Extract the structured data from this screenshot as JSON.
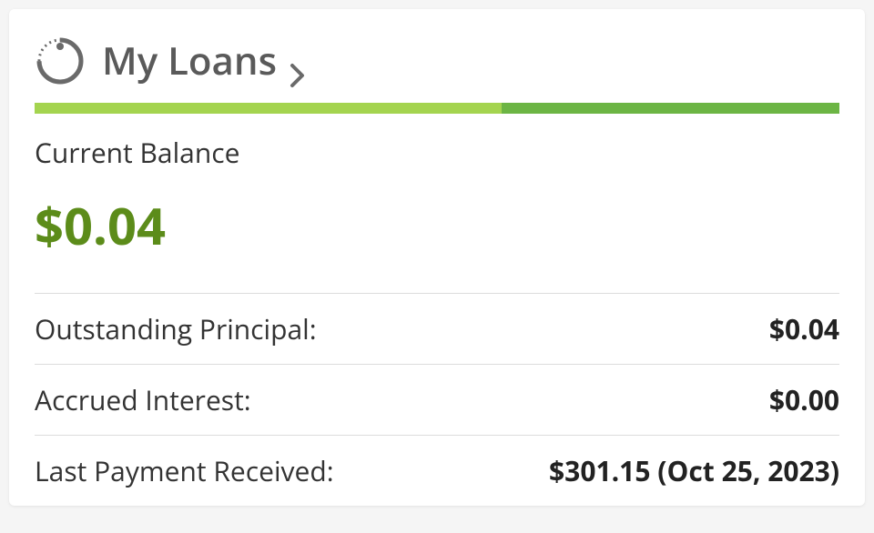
{
  "header": {
    "title": "My Loans"
  },
  "progress": {
    "seg1_color": "#a4d44f",
    "seg1_pct": 58,
    "seg2_color": "#6cb544",
    "seg2_pct": 42
  },
  "balance": {
    "label": "Current Balance",
    "value": "$0.04",
    "value_color": "#5c8c1a"
  },
  "details": {
    "outstanding_principal": {
      "label": "Outstanding Principal:",
      "value": "$0.04"
    },
    "accrued_interest": {
      "label": "Accrued Interest:",
      "value": "$0.00"
    },
    "last_payment": {
      "label": "Last Payment Received:",
      "value": "$301.15 (Oct 25, 2023)"
    }
  },
  "colors": {
    "icon_stroke": "#6a6a6a",
    "title_text": "#5a5a5a",
    "divider": "#dcdcdc",
    "card_bg": "#ffffff"
  }
}
